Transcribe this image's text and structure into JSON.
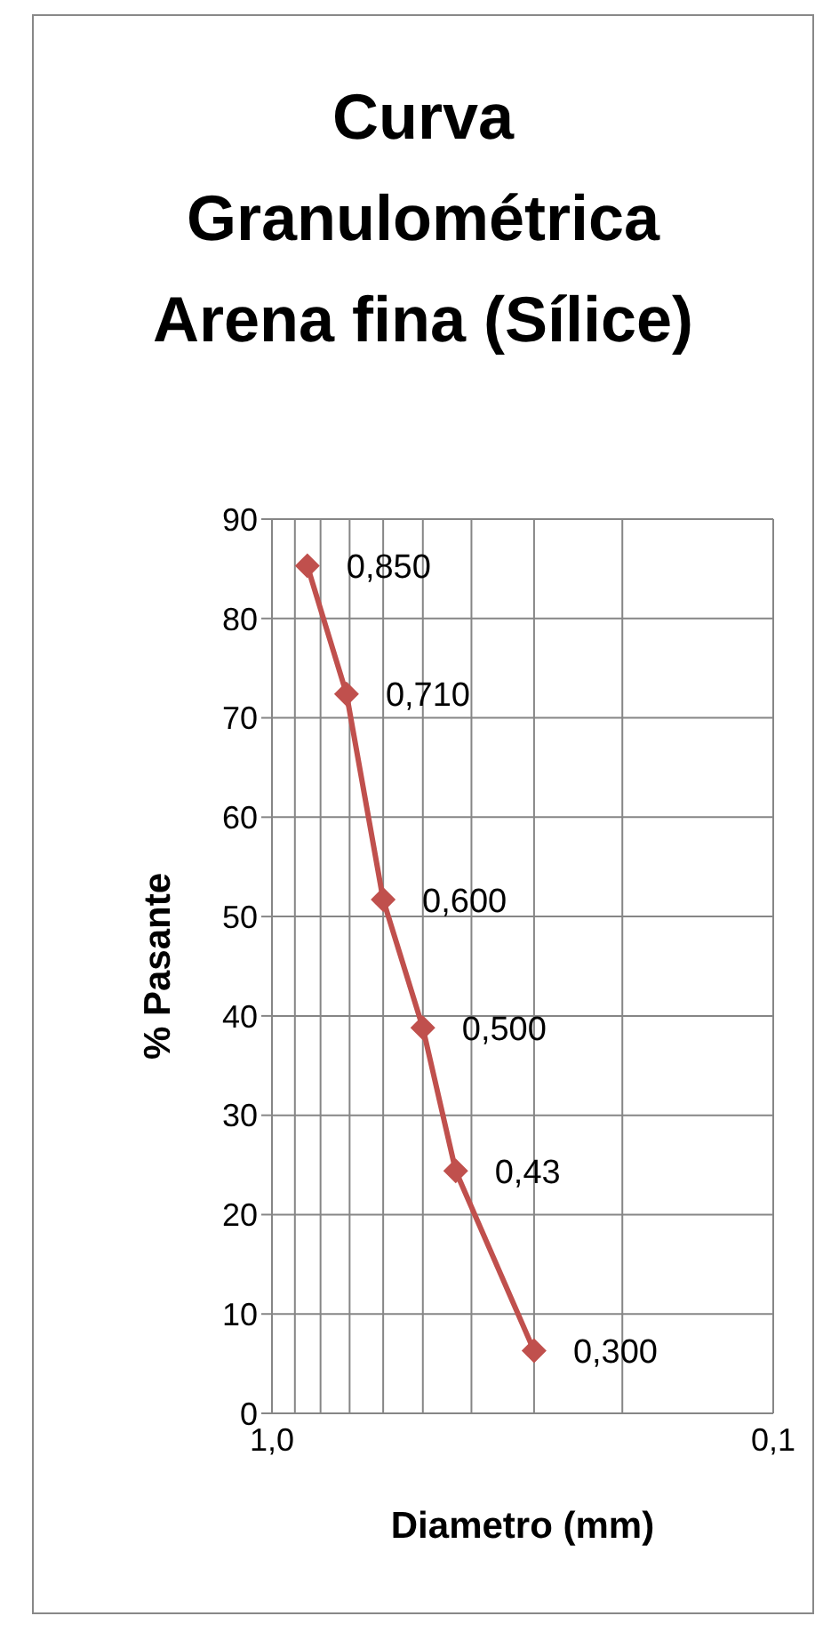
{
  "chart_data": {
    "type": "line",
    "title": "Curva Granulométrica Arena fina (Sílice)",
    "xlabel": "Diametro (mm)",
    "ylabel": "% Pasante",
    "x": [
      0.85,
      0.71,
      0.6,
      0.5,
      0.43,
      0.3
    ],
    "series": [
      {
        "color": "#c0504d",
        "values": [
          85.3,
          72.4,
          51.7,
          38.8,
          24.4,
          6.3
        ]
      }
    ],
    "annotations": [
      {
        "text": "0,850",
        "x": 0.85,
        "y": 85.3
      },
      {
        "text": "0,710",
        "x": 0.71,
        "y": 72.4
      },
      {
        "text": "0,600",
        "x": 0.6,
        "y": 51.7
      },
      {
        "text": "0,500",
        "x": 0.5,
        "y": 38.8
      },
      {
        "text": "0,43",
        "x": 0.43,
        "y": 24.4
      },
      {
        "text": "0,300",
        "x": 0.3,
        "y": 6.3
      }
    ],
    "log": "x",
    "xlim": [
      1.0,
      0.1
    ],
    "xticks": [
      {
        "value": 1.0,
        "label": "1,0"
      },
      {
        "value": 0.9,
        "label": null
      },
      {
        "value": 0.8,
        "label": null
      },
      {
        "value": 0.7,
        "label": null
      },
      {
        "value": 0.6,
        "label": null
      },
      {
        "value": 0.5,
        "label": null
      },
      {
        "value": 0.4,
        "label": null
      },
      {
        "value": 0.3,
        "label": null
      },
      {
        "value": 0.2,
        "label": null
      },
      {
        "value": 0.1,
        "label": "0,1"
      }
    ],
    "ylim": [
      0,
      90
    ],
    "yticks": [
      0,
      10,
      20,
      30,
      40,
      50,
      60,
      70,
      80,
      90
    ],
    "grid": true,
    "marker": "diamond",
    "line_style": "solid",
    "legend": false
  }
}
